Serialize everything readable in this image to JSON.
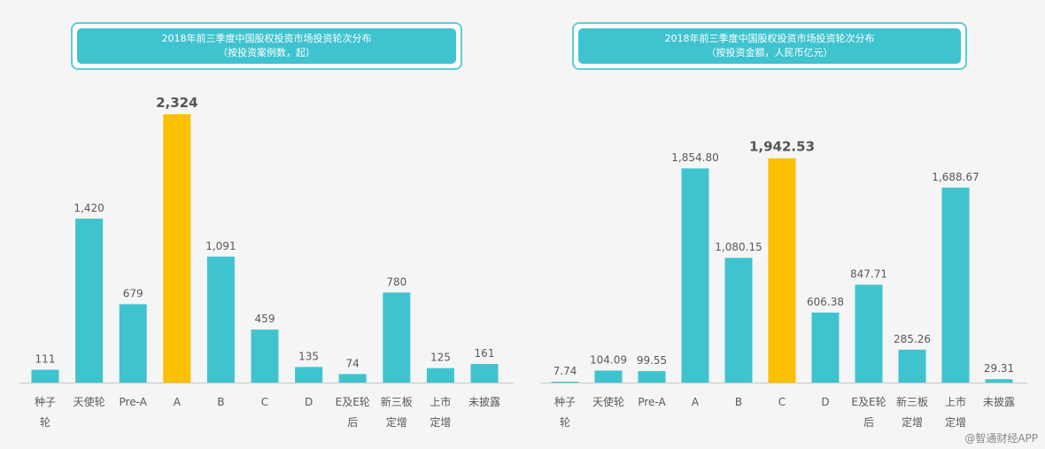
{
  "chart_data": [
    {
      "type": "bar",
      "title": "2018年前三季度中国股权投资市场投资轮次分布",
      "subtitle": "（按投资案例数，起）",
      "categories": [
        [
          "种子",
          "轮"
        ],
        [
          "天使轮"
        ],
        [
          "Pre-A"
        ],
        [
          "A"
        ],
        [
          "B"
        ],
        [
          "C"
        ],
        [
          "D"
        ],
        [
          "E及E轮",
          "后"
        ],
        [
          "新三板",
          "定增"
        ],
        [
          "上市",
          "定增"
        ],
        [
          "未披露"
        ]
      ],
      "values": [
        111,
        1420,
        679,
        2324,
        1091,
        459,
        135,
        74,
        780,
        125,
        161
      ],
      "value_labels": [
        "111",
        "1,420",
        "679",
        "2,324",
        "1,091",
        "459",
        "135",
        "74",
        "780",
        "125",
        "161"
      ],
      "highlight_index": 3,
      "ylim": [
        0,
        2324
      ],
      "grid": false,
      "colors": {
        "bar": "#3fc3cf",
        "highlight": "#fbc000",
        "label": "#595959",
        "highlight_label": "#555555"
      }
    },
    {
      "type": "bar",
      "title": "2018年前三季度中国股权投资市场投资轮次分布",
      "subtitle": "（按投资金额，人民币亿元）",
      "categories": [
        [
          "种子",
          "轮"
        ],
        [
          "天使轮"
        ],
        [
          "Pre-A"
        ],
        [
          "A"
        ],
        [
          "B"
        ],
        [
          "C"
        ],
        [
          "D"
        ],
        [
          "E及E轮",
          "后"
        ],
        [
          "新三板",
          "定增"
        ],
        [
          "上市",
          "定增"
        ],
        [
          "未披露"
        ]
      ],
      "values": [
        7.74,
        104.09,
        99.55,
        1854.8,
        1080.15,
        1942.53,
        606.38,
        847.71,
        285.26,
        1688.67,
        29.31
      ],
      "value_labels": [
        "7.74",
        "104.09",
        "99.55",
        "1,854.80",
        "1,080.15",
        "1,942.53",
        "606.38",
        "847.71",
        "285.26",
        "1,688.67",
        "29.31"
      ],
      "highlight_index": 5,
      "ylim": [
        0,
        2324
      ],
      "grid": false,
      "colors": {
        "bar": "#3fc3cf",
        "highlight": "#fbc000",
        "label": "#595959",
        "highlight_label": "#555555"
      }
    }
  ],
  "watermark": "@智通财经APP"
}
